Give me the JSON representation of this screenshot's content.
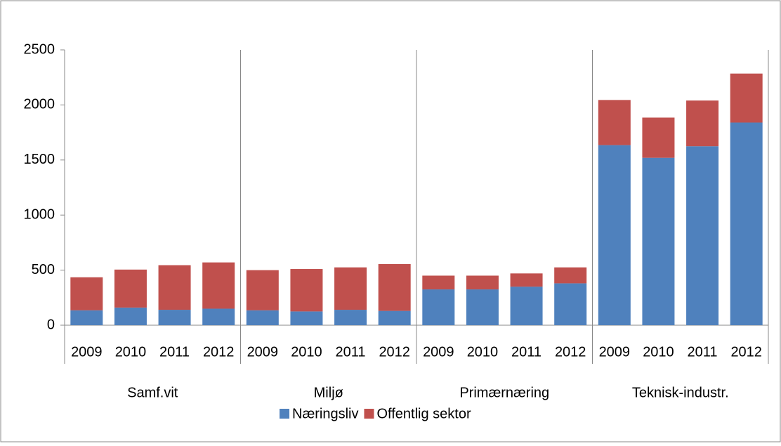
{
  "chart_data": {
    "type": "stacked_bar",
    "categories": [
      "2009",
      "2010",
      "2011",
      "2012",
      "2009",
      "2010",
      "2011",
      "2012",
      "2009",
      "2010",
      "2011",
      "2012",
      "2009",
      "2010",
      "2011",
      "2012"
    ],
    "groups": [
      "Samf.vit",
      "Miljø",
      "Primærnæring",
      "Teknisk-industr."
    ],
    "series": [
      {
        "name": "Næringsliv",
        "color": "#4f81bd",
        "values": [
          135,
          160,
          140,
          150,
          135,
          125,
          140,
          130,
          325,
          325,
          350,
          380,
          1635,
          1520,
          1625,
          1840
        ]
      },
      {
        "name": "Offentlig sektor",
        "color": "#c0504d",
        "values": [
          300,
          345,
          405,
          420,
          365,
          385,
          385,
          425,
          125,
          125,
          120,
          145,
          410,
          365,
          415,
          445
        ]
      }
    ],
    "ylim": [
      0,
      2500
    ],
    "yticks": [
      0,
      500,
      1000,
      1500,
      2000,
      2500
    ],
    "legend": "bottom"
  }
}
